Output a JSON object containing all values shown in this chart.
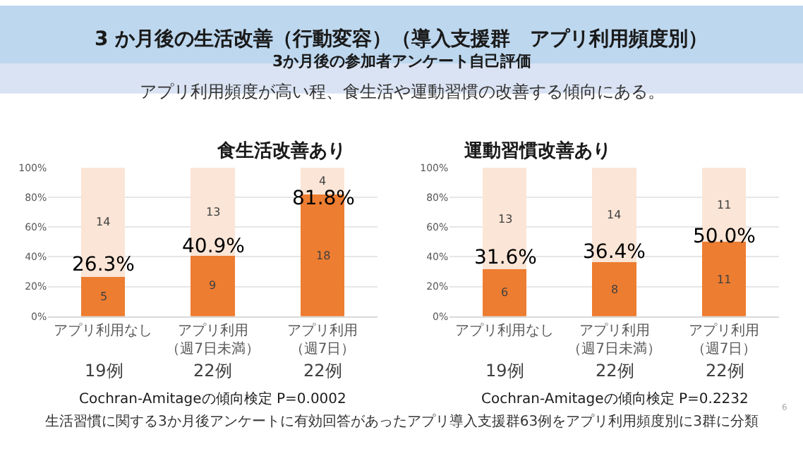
{
  "chart_data": [
    {
      "type": "other",
      "title": "3 か月後の生活改善（行動変容）（導入支援群　アプリ利用頻度別）",
      "subtitle": "3か月後の参加者アンケート自己評価",
      "annotations": [
        "アプリ利用頻度が高い程、食生活や運動習慣の改善する傾向にある。",
        "生活習慣に関する3か月後アンケートに有効回答があったアプリ導入支援群63例をアプリ利用頻度別に3群に分類",
        "6"
      ]
    },
    {
      "type": "bar",
      "title": "食生活改善あり",
      "stacked": true,
      "grid": "y",
      "categories": [
        "アプリ利用なし",
        "アプリ利用（週7日未満）",
        "アプリ利用（週7日）"
      ],
      "series": [
        {
          "color": "#ed7d31",
          "values": [
            26.3,
            40.9,
            81.8
          ]
        },
        {
          "color": "#fbe5d6",
          "values": [
            73.7,
            59.1,
            18.2
          ]
        }
      ],
      "ylim": [
        0,
        100
      ],
      "yticks": [
        {
          "value": 0,
          "label": "0%"
        },
        {
          "value": 20,
          "label": "20%"
        },
        {
          "value": 40,
          "label": "40%"
        },
        {
          "value": 60,
          "label": "60%"
        },
        {
          "value": 80,
          "label": "80%"
        },
        {
          "value": 100,
          "label": "100%"
        }
      ],
      "annotations": [
        {
          "text": "26.3%",
          "x": "アプリ利用なし",
          "y": 26.3
        },
        {
          "text": "40.9%",
          "x": "アプリ利用（週7日未満）",
          "y": 40.9
        },
        {
          "text": "81.8%",
          "x": "アプリ利用（週7日）",
          "y": 81.8
        },
        "5",
        "9",
        "18",
        "14",
        "13",
        "4",
        "19例",
        "22例",
        "22例",
        "Cochran-Amitageの傾向検定 P=0.0002"
      ]
    },
    {
      "type": "bar",
      "title": "運動習慣改善あり",
      "stacked": true,
      "grid": "y",
      "categories": [
        "アプリ利用なし",
        "アプリ利用（週7日未満）",
        "アプリ利用（週7日）"
      ],
      "series": [
        {
          "color": "#ed7d31",
          "values": [
            31.6,
            36.4,
            50.0
          ]
        },
        {
          "color": "#fbe5d6",
          "values": [
            68.4,
            63.6,
            50.0
          ]
        }
      ],
      "ylim": [
        0,
        100
      ],
      "yticks": [
        {
          "value": 0,
          "label": "0%"
        },
        {
          "value": 20,
          "label": "20%"
        },
        {
          "value": 40,
          "label": "40%"
        },
        {
          "value": 60,
          "label": "60%"
        },
        {
          "value": 80,
          "label": "80%"
        },
        {
          "value": 100,
          "label": "100%"
        }
      ],
      "annotations": [
        {
          "text": "31.6%",
          "x": "アプリ利用なし",
          "y": 31.6
        },
        {
          "text": "36.4%",
          "x": "アプリ利用（週7日未満）",
          "y": 36.4
        },
        {
          "text": "50.0%",
          "x": "アプリ利用（週7日）",
          "y": 50.0
        },
        "6",
        "8",
        "11",
        "13",
        "14",
        "11",
        "19例",
        "22例",
        "22例",
        "Cochran-Amitageの傾向検定 P=0.2232"
      ]
    }
  ]
}
